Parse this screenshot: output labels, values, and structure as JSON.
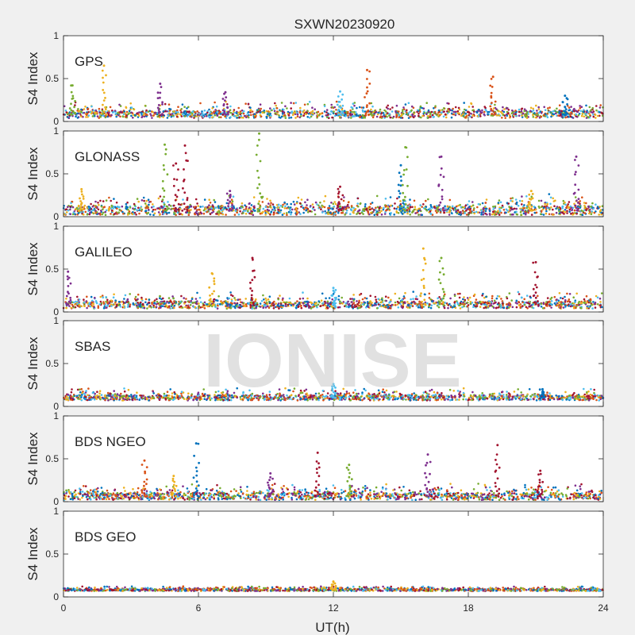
{
  "title": "SXWN20230920",
  "watermark": "IONISE",
  "chart_data": {
    "type": "scatter",
    "title": "SXWN20230920",
    "xlabel": "UT(h)",
    "ylabel": "S4 Index",
    "xlim": [
      0,
      24
    ],
    "ylim": [
      0,
      1
    ],
    "xticks": [
      0,
      6,
      12,
      18,
      24
    ],
    "xtick_labels": [
      "0",
      "6",
      "12",
      "18",
      "24"
    ],
    "yticks": [
      0,
      0.5,
      1
    ],
    "ytick_labels": [
      "0",
      "0.5",
      "1"
    ],
    "grid": false,
    "series_colors": [
      "#0072bd",
      "#d95319",
      "#edb120",
      "#7e2f8e",
      "#77ac30",
      "#4dbeee",
      "#a2142f"
    ],
    "panels": [
      {
        "label": "GPS",
        "baseline": 0.08,
        "noise": 0.04,
        "spikes": [
          {
            "x": 0.4,
            "y": 0.42,
            "series": 4
          },
          {
            "x": 1.8,
            "y": 0.65,
            "series": 2
          },
          {
            "x": 4.3,
            "y": 0.44,
            "series": 3
          },
          {
            "x": 7.2,
            "y": 0.34,
            "series": 3
          },
          {
            "x": 12.3,
            "y": 0.35,
            "series": 5
          },
          {
            "x": 13.5,
            "y": 0.6,
            "series": 1
          },
          {
            "x": 19.1,
            "y": 0.52,
            "series": 1
          },
          {
            "x": 22.3,
            "y": 0.3,
            "series": 0
          }
        ]
      },
      {
        "label": "GLONASS",
        "baseline": 0.07,
        "noise": 0.05,
        "spikes": [
          {
            "x": 0.8,
            "y": 0.32,
            "series": 2
          },
          {
            "x": 4.5,
            "y": 0.84,
            "series": 4
          },
          {
            "x": 5.0,
            "y": 0.62,
            "series": 6
          },
          {
            "x": 5.4,
            "y": 0.83,
            "series": 6
          },
          {
            "x": 7.4,
            "y": 0.3,
            "series": 3
          },
          {
            "x": 8.7,
            "y": 0.97,
            "series": 4
          },
          {
            "x": 12.3,
            "y": 0.35,
            "series": 6
          },
          {
            "x": 15.0,
            "y": 0.6,
            "series": 0
          },
          {
            "x": 15.2,
            "y": 0.81,
            "series": 4
          },
          {
            "x": 16.8,
            "y": 0.7,
            "series": 3
          },
          {
            "x": 20.8,
            "y": 0.3,
            "series": 2
          },
          {
            "x": 22.8,
            "y": 0.7,
            "series": 3
          }
        ]
      },
      {
        "label": "GALILEO",
        "baseline": 0.08,
        "noise": 0.04,
        "spikes": [
          {
            "x": 0.2,
            "y": 0.47,
            "series": 3
          },
          {
            "x": 6.6,
            "y": 0.45,
            "series": 2
          },
          {
            "x": 8.4,
            "y": 0.63,
            "series": 6
          },
          {
            "x": 16.0,
            "y": 0.74,
            "series": 2
          },
          {
            "x": 16.8,
            "y": 0.63,
            "series": 4
          },
          {
            "x": 21.0,
            "y": 0.58,
            "series": 6
          },
          {
            "x": 12.0,
            "y": 0.28,
            "series": 5
          }
        ]
      },
      {
        "label": "SBAS",
        "baseline": 0.1,
        "noise": 0.03,
        "spikes": [
          {
            "x": 12.0,
            "y": 0.26,
            "series": 5
          },
          {
            "x": 21.3,
            "y": 0.2,
            "series": 0
          }
        ]
      },
      {
        "label": "BDS NGEO",
        "baseline": 0.06,
        "noise": 0.04,
        "spikes": [
          {
            "x": 3.6,
            "y": 0.48,
            "series": 1
          },
          {
            "x": 5.9,
            "y": 0.68,
            "series": 0
          },
          {
            "x": 4.9,
            "y": 0.3,
            "series": 2
          },
          {
            "x": 11.3,
            "y": 0.57,
            "series": 6
          },
          {
            "x": 12.7,
            "y": 0.43,
            "series": 4
          },
          {
            "x": 16.2,
            "y": 0.55,
            "series": 3
          },
          {
            "x": 19.3,
            "y": 0.66,
            "series": 6
          },
          {
            "x": 21.2,
            "y": 0.36,
            "series": 6
          },
          {
            "x": 9.2,
            "y": 0.33,
            "series": 3
          }
        ]
      },
      {
        "label": "BDS GEO",
        "baseline": 0.08,
        "noise": 0.012,
        "spikes": [
          {
            "x": 12.0,
            "y": 0.18,
            "series": 2
          }
        ]
      }
    ]
  }
}
